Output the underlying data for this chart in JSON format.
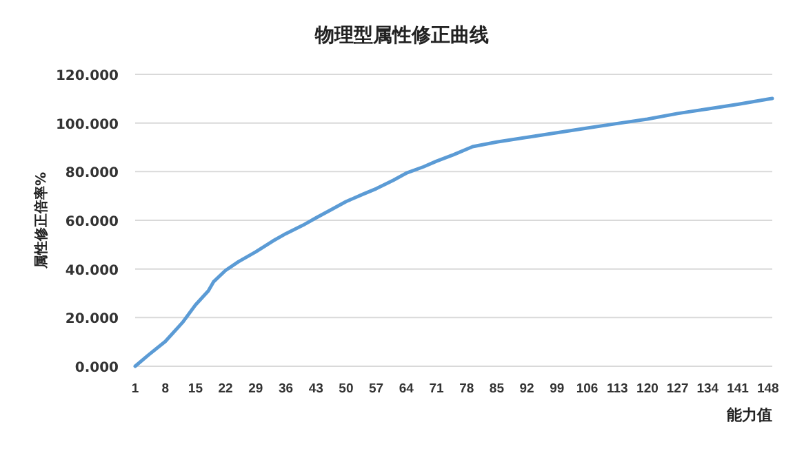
{
  "chart_data": {
    "type": "line",
    "title": "物理型属性修正曲线",
    "xlabel": "能力值",
    "ylabel": "属性修正倍率%",
    "x": [
      1,
      4,
      8,
      12,
      15,
      18,
      19.2,
      22,
      25,
      29,
      33,
      36,
      40,
      43,
      47,
      50,
      54,
      57,
      61,
      64,
      68,
      71,
      75,
      79.4,
      85,
      92,
      99,
      106,
      113,
      120,
      127,
      134,
      141,
      148,
      149
    ],
    "series": [
      {
        "color": "#5b9bd5",
        "values": [
          0,
          4.5,
          10.2,
          18,
          25.2,
          31,
          34.7,
          39.4,
          43,
          47,
          51.5,
          54.5,
          58,
          61,
          64.8,
          67.7,
          70.8,
          73,
          76.5,
          79.4,
          82,
          84.3,
          87,
          90.3,
          92.2,
          94.1,
          96,
          97.9,
          99.8,
          101.6,
          103.9,
          105.8,
          107.7,
          109.8,
          110.1
        ]
      }
    ],
    "xlim": [
      1,
      149
    ],
    "xticks": [
      1,
      8,
      15,
      22,
      29,
      36,
      43,
      50,
      57,
      64,
      71,
      78,
      85,
      92,
      99,
      106,
      113,
      120,
      127,
      134,
      141,
      148
    ],
    "ylim": [
      0,
      120
    ],
    "yticks": [
      {
        "value": 0,
        "label": "0.000"
      },
      {
        "value": 20,
        "label": "20.000"
      },
      {
        "value": 40,
        "label": "40.000"
      },
      {
        "value": 60,
        "label": "60.000"
      },
      {
        "value": 80,
        "label": "80.000"
      },
      {
        "value": 100,
        "label": "100.000"
      },
      {
        "value": 120,
        "label": "120.000"
      }
    ],
    "grid": "y",
    "marker": "none",
    "line_style": "solid"
  }
}
